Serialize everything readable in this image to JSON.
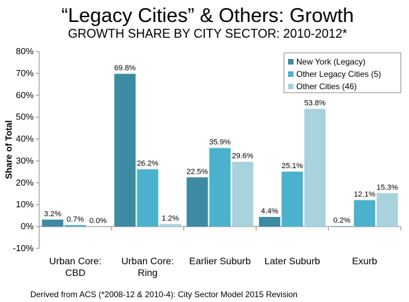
{
  "chart_data": {
    "type": "bar",
    "title": "“Legacy Cities” & Others: Growth",
    "subtitle": "GROWTH SHARE BY CITY SECTOR: 2010-2012*",
    "xlabel": "",
    "ylabel": "Share of Total",
    "ylim": [
      -10,
      80
    ],
    "yticks": [
      -10,
      0,
      10,
      20,
      30,
      40,
      50,
      60,
      70,
      80
    ],
    "ytick_labels": [
      "-10%",
      "0%",
      "10%",
      "20%",
      "30%",
      "40%",
      "50%",
      "60%",
      "70%",
      "80%"
    ],
    "categories": [
      [
        "Urban Core:",
        "CBD"
      ],
      [
        "Urban Core:",
        "Ring"
      ],
      [
        "Earlier Suburb"
      ],
      [
        "Later Suburb"
      ],
      [
        "Exurb"
      ]
    ],
    "series": [
      {
        "name": "New York (Legacy)",
        "color": "#3d8aa3",
        "values": [
          3.2,
          69.8,
          22.5,
          4.4,
          0.2
        ],
        "labels": [
          "3.2%",
          "69.8%",
          "22.5%",
          "4.4%",
          "0.2%"
        ]
      },
      {
        "name": "Other Legacy Cities (5)",
        "color": "#4bb1cc",
        "values": [
          0.7,
          26.2,
          35.9,
          25.1,
          12.1
        ],
        "labels": [
          "0.7%",
          "26.2%",
          "35.9%",
          "25.1%",
          "12.1%"
        ]
      },
      {
        "name": "Other Cities (46)",
        "color": "#a9d2df",
        "values": [
          0.0,
          1.2,
          29.6,
          53.8,
          15.3
        ],
        "labels": [
          "0.0%",
          "1.2%",
          "29.6%",
          "53.8%",
          "15.3%"
        ]
      }
    ],
    "legend_position": "top-right",
    "grid": false
  },
  "source_note": "Derived from ACS (*2008-12 & 2010-4): City Sector Model 2015 Revision"
}
